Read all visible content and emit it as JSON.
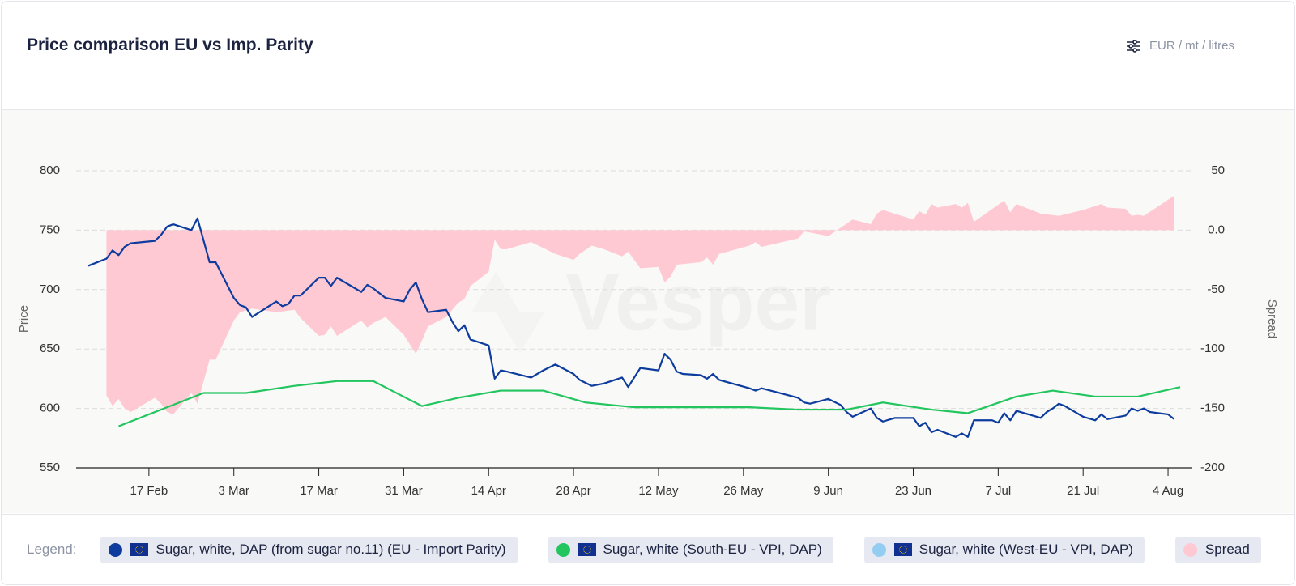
{
  "header": {
    "title": "Price comparison EU vs Imp. Parity",
    "unit": "EUR / mt / litres"
  },
  "legend_label": "Legend:",
  "chart_data": {
    "type": "line",
    "watermark": "Vesper",
    "ylabel": "Price",
    "y2label": "Spread",
    "xlim": [
      36,
      220
    ],
    "xticks": [
      {
        "value": 48,
        "label": "17 Feb"
      },
      {
        "value": 62,
        "label": "3 Mar"
      },
      {
        "value": 76,
        "label": "17 Mar"
      },
      {
        "value": 90,
        "label": "31 Mar"
      },
      {
        "value": 104,
        "label": "14 Apr"
      },
      {
        "value": 118,
        "label": "28 Apr"
      },
      {
        "value": 132,
        "label": "12 May"
      },
      {
        "value": 146,
        "label": "26 May"
      },
      {
        "value": 160,
        "label": "9 Jun"
      },
      {
        "value": 174,
        "label": "23 Jun"
      },
      {
        "value": 188,
        "label": "7 Jul"
      },
      {
        "value": 202,
        "label": "21 Jul"
      },
      {
        "value": 216,
        "label": "4 Aug"
      }
    ],
    "ylim": [
      550,
      800
    ],
    "yticks": [
      550,
      600,
      650,
      700,
      750,
      800
    ],
    "y2lim": [
      -200,
      50
    ],
    "y2ticks": [
      -200,
      -150,
      -100,
      -50,
      {
        "value": 0,
        "label": "0.0"
      },
      50
    ],
    "grid": true,
    "series": [
      {
        "name": "Sugar, white, DAP (from sugar no.11) (EU - Import Parity)",
        "color": "#0d3c9e",
        "kind": "line",
        "x": [
          38,
          41,
          42,
          43,
          44,
          45,
          49,
          50,
          51,
          52,
          55,
          56,
          58,
          59,
          62,
          63,
          64,
          65,
          69,
          70,
          71,
          72,
          73,
          76,
          77,
          78,
          79,
          83,
          84,
          85,
          87,
          90,
          91,
          92,
          93,
          94,
          97,
          98,
          99,
          100,
          101,
          104,
          105,
          106,
          107,
          111,
          113,
          115,
          118,
          119,
          121,
          123,
          126,
          127,
          129,
          132,
          133,
          134,
          135,
          136,
          139,
          140,
          141,
          142,
          147,
          148,
          149,
          155,
          156,
          157,
          160,
          162,
          163,
          164,
          167,
          168,
          169,
          171,
          174,
          175,
          176,
          177,
          178,
          181,
          182,
          183,
          184,
          187,
          188,
          189,
          190,
          191,
          195,
          196,
          197,
          198,
          199,
          202,
          204,
          205,
          206,
          209,
          210,
          211,
          212,
          213,
          216,
          217
        ],
        "values": [
          720,
          726,
          733,
          729,
          736,
          739,
          741,
          746,
          753,
          755,
          750,
          760,
          723,
          723,
          693,
          687,
          685,
          677,
          690,
          686,
          688,
          695,
          695,
          710,
          710,
          703,
          710,
          698,
          704,
          701,
          693,
          690,
          700,
          706,
          692,
          681,
          683,
          673,
          665,
          670,
          658,
          653,
          625,
          632,
          631,
          626,
          632,
          637,
          629,
          624,
          619,
          621,
          626,
          618,
          634,
          632,
          646,
          641,
          631,
          629,
          628,
          625,
          629,
          624,
          617,
          615,
          617,
          609,
          605,
          604,
          608,
          603,
          597,
          593,
          600,
          592,
          589,
          592,
          592,
          585,
          588,
          580,
          582,
          576,
          579,
          576,
          590,
          590,
          588,
          596,
          590,
          598,
          592,
          597,
          600,
          604,
          602,
          593,
          590,
          595,
          591,
          594,
          600,
          598,
          600,
          597,
          595,
          591
        ]
      },
      {
        "name": "Sugar, white (South-EU - VPI, DAP)",
        "color": "#22c55e",
        "kind": "line",
        "x": [
          43,
          57,
          64,
          72,
          79,
          85,
          93,
          99,
          106,
          113,
          120,
          128,
          147,
          155,
          163,
          169,
          177,
          183,
          191,
          197,
          204,
          211,
          218
        ],
        "values": [
          585,
          613,
          613,
          619,
          623,
          623,
          602,
          609,
          615,
          615,
          605,
          601,
          601,
          599,
          599,
          605,
          599,
          596,
          610,
          615,
          610,
          610,
          618
        ]
      },
      {
        "name": "Sugar, white (West-EU - VPI, DAP)",
        "color": "#93cdf2",
        "kind": "line",
        "x": [],
        "values": []
      },
      {
        "name": "Spread",
        "color": "#ffc9d3",
        "kind": "area",
        "axis": "y2",
        "x": [
          41,
          42,
          43,
          44,
          45,
          49,
          50,
          51,
          52,
          55,
          56,
          58,
          59,
          62,
          63,
          65,
          69,
          72,
          73,
          76,
          77,
          78,
          79,
          83,
          84,
          85,
          87,
          90,
          92,
          93,
          94,
          97,
          99,
          100,
          101,
          104,
          105,
          106,
          107,
          111,
          113,
          115,
          118,
          119,
          121,
          123,
          126,
          127,
          129,
          132,
          133,
          134,
          135,
          139,
          140,
          141,
          142,
          147,
          148,
          149,
          155,
          156,
          160,
          162,
          164,
          167,
          168,
          169,
          174,
          175,
          176,
          177,
          178,
          181,
          182,
          183,
          184,
          189,
          190,
          191,
          195,
          198,
          202,
          205,
          206,
          209,
          210,
          211,
          212,
          217
        ],
        "values": [
          -139,
          -148,
          -142,
          -150,
          -153,
          -141,
          -146,
          -153,
          -155,
          -137,
          -146,
          -109,
          -109,
          -76,
          -69,
          -66,
          -69,
          -67,
          -74,
          -89,
          -88,
          -81,
          -89,
          -76,
          -82,
          -78,
          -73,
          -88,
          -104,
          -93,
          -81,
          -73,
          -61,
          -58,
          -47,
          -35,
          -8,
          -16,
          -16,
          -10,
          -15,
          -20,
          -25,
          -20,
          -13,
          -16,
          -22,
          -18,
          -32,
          -31,
          -44,
          -39,
          -29,
          -27,
          -23,
          -29,
          -20,
          -13,
          -10,
          -14,
          -7,
          -1,
          -5,
          2,
          9,
          5,
          14,
          17,
          9,
          16,
          13,
          22,
          19,
          22,
          19,
          23,
          7,
          25,
          15,
          22,
          14,
          12,
          17,
          22,
          19,
          18,
          12,
          13,
          12,
          29
        ]
      }
    ]
  }
}
